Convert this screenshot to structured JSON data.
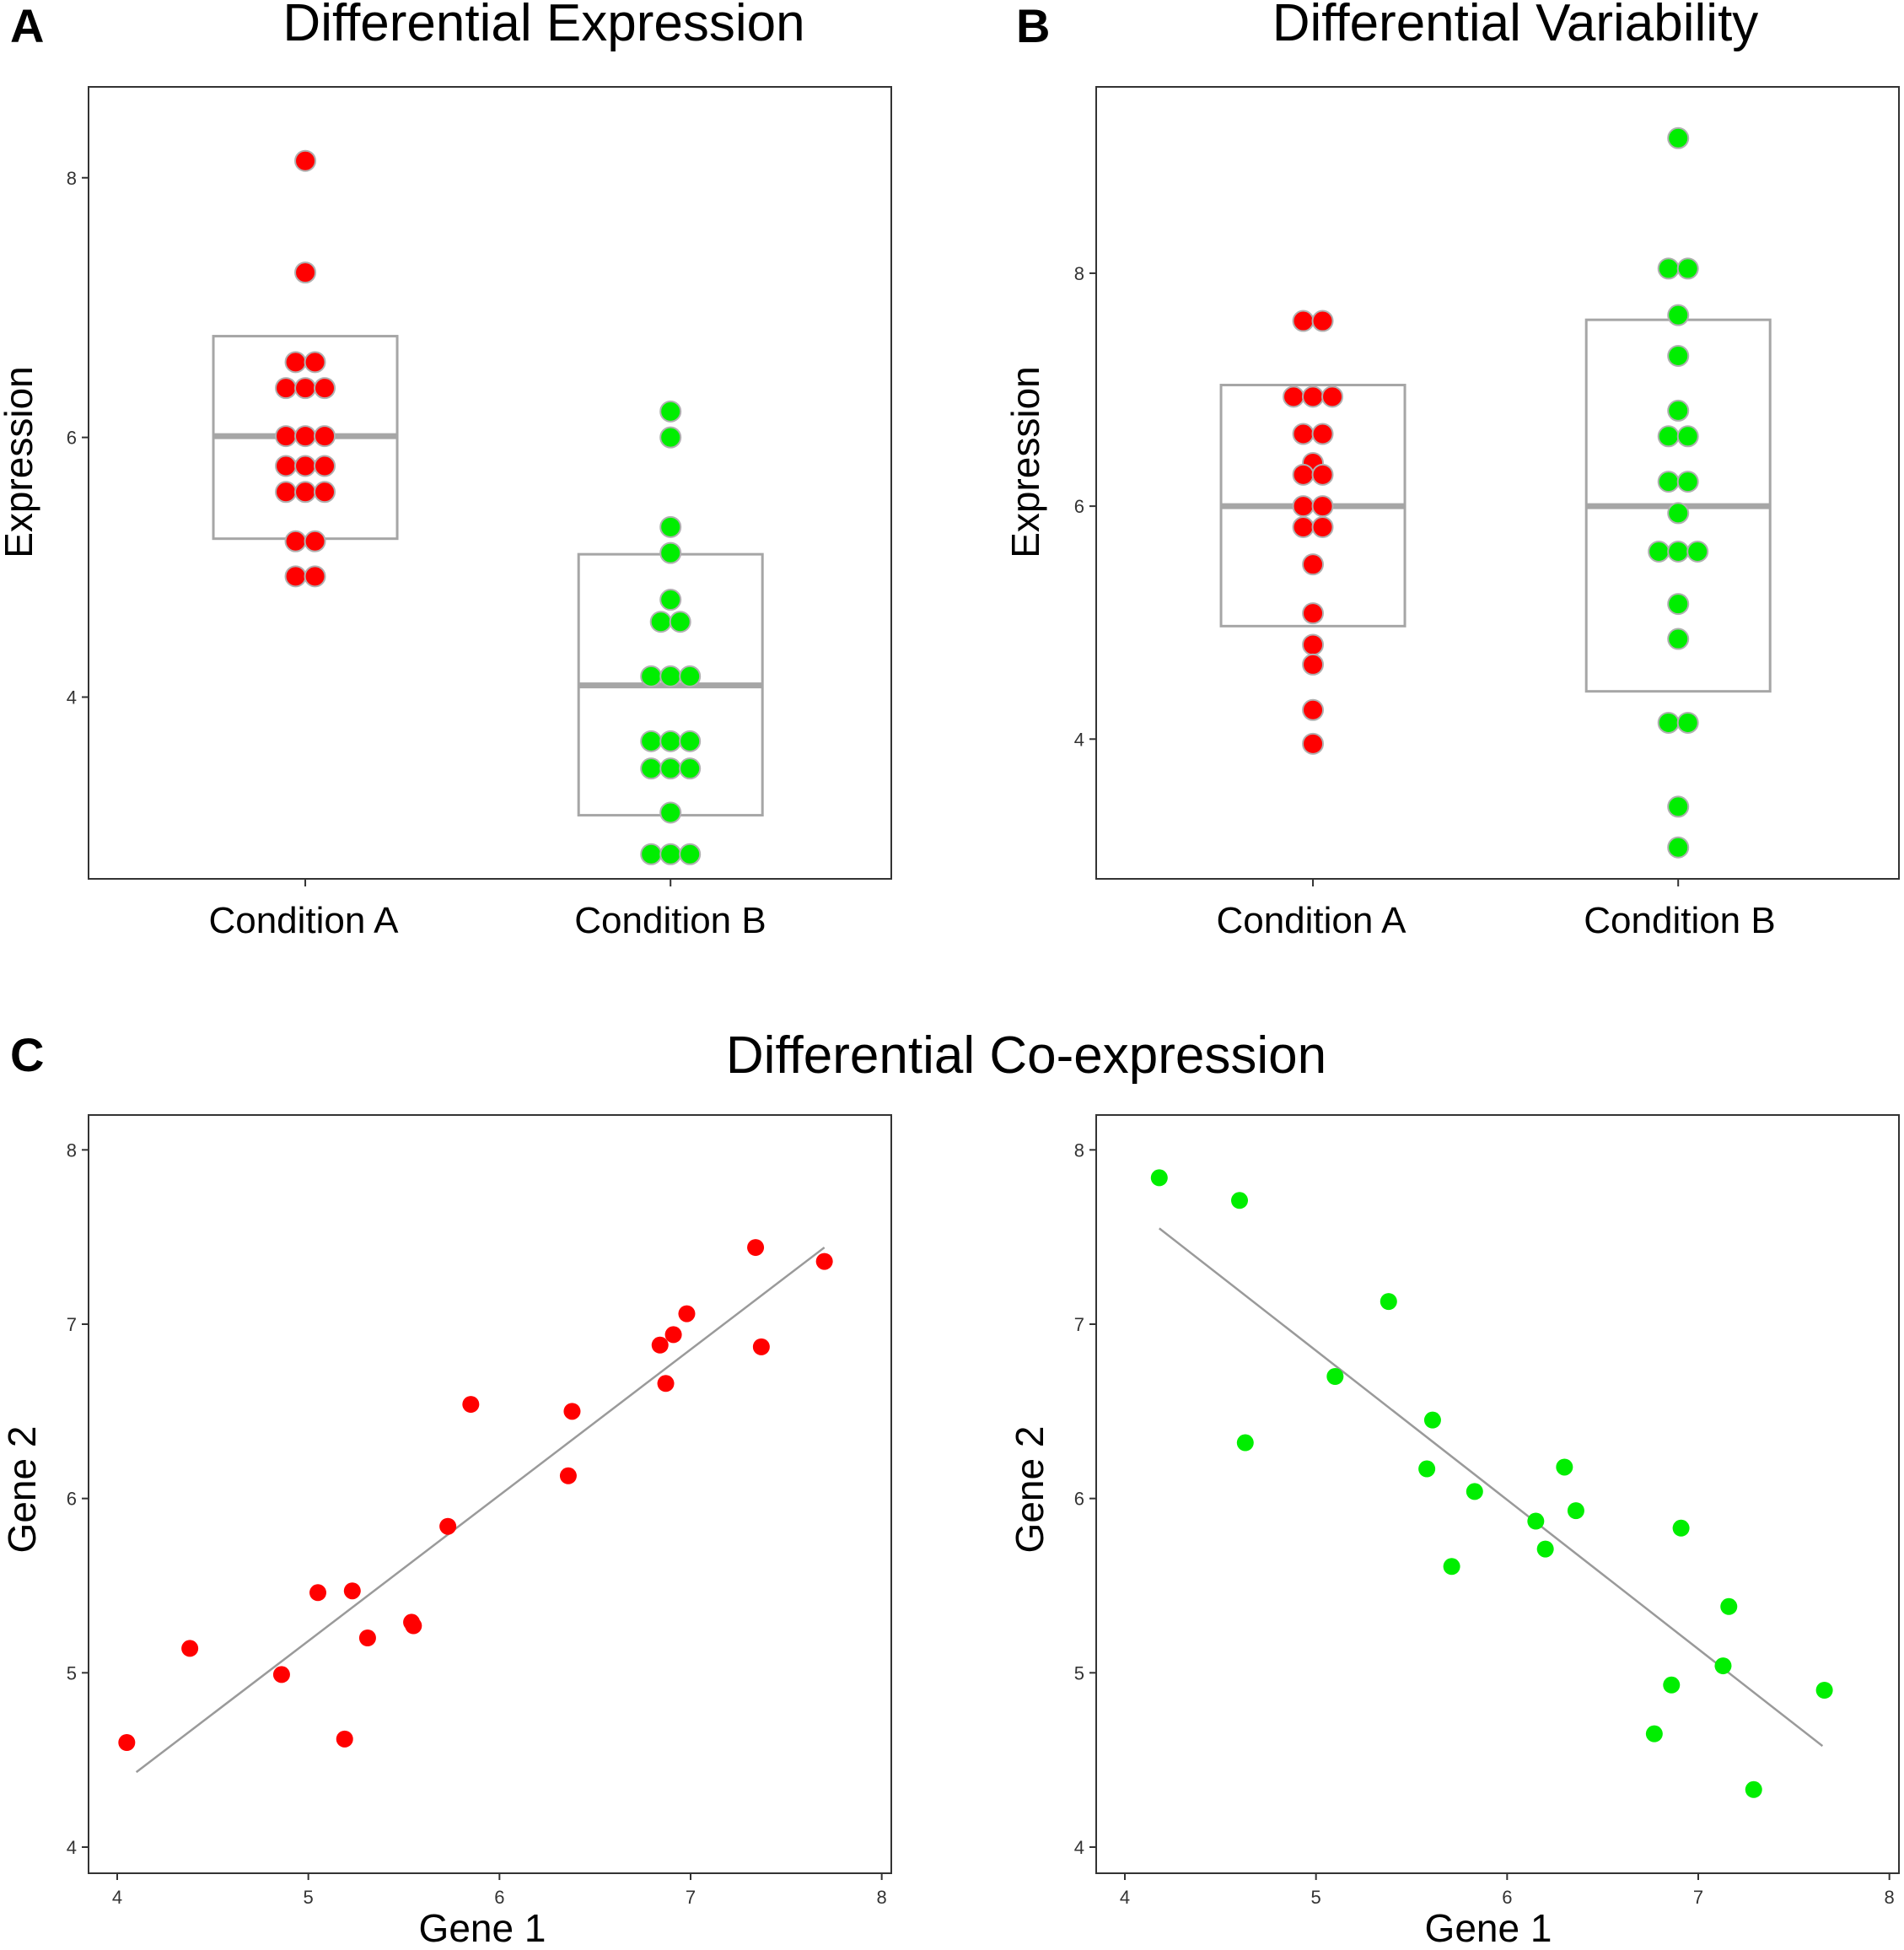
{
  "panels": {
    "A": {
      "letter": "A",
      "title": "Differential Expression"
    },
    "B": {
      "letter": "B",
      "title": "Differential Variability"
    },
    "C": {
      "letter": "C",
      "title": "Differential Co-expression"
    }
  },
  "colors": {
    "condition_a": "#ff0000",
    "condition_b": "#00ee00",
    "box": "#a6a6a6",
    "point_outline": "#b0b0b0",
    "fit_line": "#9a9a9a"
  },
  "chart_data": [
    {
      "id": "A",
      "type": "scatter",
      "subtype": "dotplot_with_box",
      "title": "Differential Expression",
      "xlabel": "",
      "ylabel": "Expression",
      "categories": [
        "Condition A",
        "Condition B"
      ],
      "ylim": [
        2.6,
        8.7
      ],
      "yticks": [
        4,
        6,
        8
      ],
      "series": [
        {
          "name": "Condition A",
          "color": "#ff0000",
          "values": [
            8.13,
            7.27,
            6.58,
            6.58,
            6.38,
            6.38,
            6.38,
            6.01,
            6.01,
            6.01,
            5.78,
            5.78,
            5.78,
            5.58,
            5.58,
            5.58,
            5.2,
            5.2,
            4.93,
            4.93
          ],
          "box": {
            "low": 5.22,
            "mid": 6.01,
            "high": 6.78
          }
        },
        {
          "name": "Condition B",
          "color": "#00ee00",
          "values": [
            6.2,
            6.0,
            5.31,
            5.11,
            4.75,
            4.58,
            4.58,
            4.16,
            4.16,
            4.16,
            3.66,
            3.66,
            3.66,
            3.45,
            3.45,
            3.45,
            3.11,
            2.79,
            2.79,
            2.79
          ],
          "box": {
            "low": 3.09,
            "mid": 4.09,
            "high": 5.1
          }
        }
      ]
    },
    {
      "id": "B",
      "type": "scatter",
      "subtype": "dotplot_with_box",
      "title": "Differential Variability",
      "xlabel": "",
      "ylabel": "Expression",
      "categories": [
        "Condition A",
        "Condition B"
      ],
      "ylim": [
        2.8,
        9.6
      ],
      "yticks": [
        4,
        6,
        8
      ],
      "series": [
        {
          "name": "Condition A",
          "color": "#ff0000",
          "values": [
            7.59,
            7.59,
            6.94,
            6.94,
            6.94,
            6.62,
            6.62,
            6.37,
            6.27,
            6.27,
            6.0,
            6.0,
            5.82,
            5.82,
            5.5,
            5.08,
            4.81,
            4.64,
            4.25,
            3.96
          ],
          "box": {
            "low": 4.97,
            "mid": 6.0,
            "high": 7.04
          }
        },
        {
          "name": "Condition B",
          "color": "#00ee00",
          "values": [
            9.16,
            8.04,
            8.04,
            7.64,
            7.29,
            6.82,
            6.6,
            6.6,
            6.21,
            6.21,
            5.94,
            5.61,
            5.61,
            5.61,
            5.16,
            4.86,
            4.14,
            4.14,
            3.42,
            3.07
          ],
          "box": {
            "low": 4.41,
            "mid": 6.0,
            "high": 7.6
          }
        }
      ]
    },
    {
      "id": "C-left",
      "type": "scatter",
      "title": "Differential Co-expression",
      "xlabel": "Gene 1",
      "ylabel": "Gene 2",
      "xlim": [
        3.85,
        8.05
      ],
      "ylim": [
        3.85,
        8.2
      ],
      "xticks": [
        4,
        5,
        6,
        7,
        8
      ],
      "yticks": [
        4,
        5,
        6,
        7,
        8
      ],
      "color": "#ff0000",
      "points": [
        [
          4.05,
          4.6
        ],
        [
          4.38,
          5.14
        ],
        [
          4.86,
          4.99
        ],
        [
          5.05,
          5.46
        ],
        [
          5.19,
          4.62
        ],
        [
          5.23,
          5.47
        ],
        [
          5.31,
          5.2
        ],
        [
          5.54,
          5.29
        ],
        [
          5.55,
          5.27
        ],
        [
          5.73,
          5.84
        ],
        [
          5.85,
          6.54
        ],
        [
          6.36,
          6.13
        ],
        [
          6.38,
          6.5
        ],
        [
          6.84,
          6.88
        ],
        [
          6.87,
          6.66
        ],
        [
          6.91,
          6.94
        ],
        [
          6.98,
          7.06
        ],
        [
          7.34,
          7.44
        ],
        [
          7.37,
          6.87
        ],
        [
          7.7,
          7.36
        ]
      ],
      "fit_line": [
        [
          4.1,
          4.43
        ],
        [
          7.7,
          7.44
        ]
      ]
    },
    {
      "id": "C-right",
      "type": "scatter",
      "title": "",
      "xlabel": "Gene 1",
      "ylabel": "Gene 2",
      "xlim": [
        3.85,
        8.05
      ],
      "ylim": [
        3.85,
        8.2
      ],
      "xticks": [
        4,
        5,
        6,
        7,
        8
      ],
      "yticks": [
        4,
        5,
        6,
        7,
        8
      ],
      "color": "#00ee00",
      "points": [
        [
          4.18,
          7.84
        ],
        [
          4.6,
          7.71
        ],
        [
          4.63,
          6.32
        ],
        [
          5.1,
          6.7
        ],
        [
          5.38,
          7.13
        ],
        [
          5.58,
          6.17
        ],
        [
          5.61,
          6.45
        ],
        [
          5.71,
          5.61
        ],
        [
          5.83,
          6.04
        ],
        [
          6.15,
          5.87
        ],
        [
          6.2,
          5.71
        ],
        [
          6.3,
          6.18
        ],
        [
          6.36,
          5.93
        ],
        [
          6.77,
          4.65
        ],
        [
          6.86,
          4.93
        ],
        [
          6.91,
          5.83
        ],
        [
          7.13,
          5.04
        ],
        [
          7.16,
          5.38
        ],
        [
          7.29,
          4.33
        ],
        [
          7.66,
          4.9
        ]
      ],
      "fit_line": [
        [
          4.18,
          7.55
        ],
        [
          7.65,
          4.58
        ]
      ]
    }
  ]
}
